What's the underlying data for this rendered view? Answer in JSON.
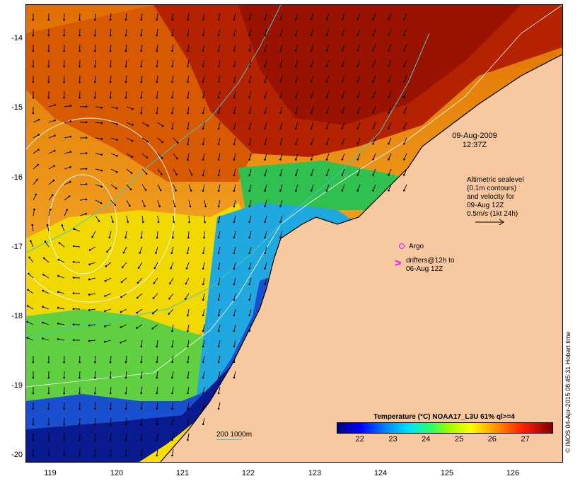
{
  "map": {
    "date_line1": "09-Aug-2009",
    "date_line2": "12:37Z",
    "lat_ticks": [
      "-14",
      "-15",
      "-16",
      "-17",
      "-18",
      "-19",
      "-20"
    ],
    "lon_ticks": [
      "119",
      "120",
      "121",
      "122",
      "123",
      "124",
      "125",
      "126"
    ],
    "lon_range": [
      118.65,
      126.7
    ],
    "lat_range": [
      -13.6,
      -20.1
    ]
  },
  "legend": {
    "altimetric": [
      "Altimetric sealevel",
      "(0.1m contours)",
      "and velocity for",
      "09-Aug 12Z",
      "0.5m/s (1kt 24h)"
    ],
    "argo_label": "Argo",
    "drifters_line1": "drifters@12h to",
    "drifters_line2": "06-Aug 12Z",
    "contour_label": "200  1000m",
    "marker_color": "#ff00ff",
    "contour_color": "#40c8c8"
  },
  "colorbar": {
    "title": "Temperature (°C) NOAA17_L3U 61% ql>=4",
    "ticks": [
      "22",
      "23",
      "24",
      "25",
      "26",
      "27"
    ],
    "range": [
      21.3,
      27.8
    ]
  },
  "credit": "© IMOS 04-Apr-2015 08:45:31 Hobart time"
}
